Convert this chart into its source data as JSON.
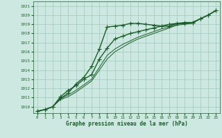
{
  "xlabel": "Graphe pression niveau de la mer (hPa)",
  "xlim": [
    -0.5,
    23.5
  ],
  "ylim": [
    1009.3,
    1021.5
  ],
  "yticks": [
    1010,
    1011,
    1012,
    1013,
    1014,
    1015,
    1016,
    1017,
    1018,
    1019,
    1020,
    1021
  ],
  "xticks": [
    0,
    1,
    2,
    3,
    4,
    5,
    6,
    7,
    8,
    9,
    10,
    11,
    12,
    13,
    14,
    15,
    16,
    17,
    18,
    19,
    20,
    21,
    22,
    23
  ],
  "bg_color": "#cce8e0",
  "grid_color": "#a0c8bc",
  "line_color": "#1a5c2a",
  "series": [
    {
      "y": [
        1009.5,
        1009.7,
        1010.0,
        1010.9,
        1011.5,
        1012.5,
        1013.2,
        1014.4,
        1016.3,
        1018.7,
        1018.8,
        1018.9,
        1019.1,
        1019.1,
        1019.0,
        1018.9,
        1018.8,
        1018.8,
        1019.1,
        1019.1,
        1019.2,
        1019.6,
        1020.0,
        1020.5
      ],
      "marker": "+",
      "lw": 1.0,
      "ms": 5
    },
    {
      "y": [
        1009.5,
        1009.7,
        1010.0,
        1011.1,
        1011.8,
        1012.3,
        1013.0,
        1013.5,
        1015.2,
        1016.4,
        1017.4,
        1017.7,
        1018.0,
        1018.2,
        1018.4,
        1018.6,
        1018.8,
        1019.0,
        1019.1,
        1019.2,
        1019.2,
        1019.6,
        1020.0,
        1020.5
      ],
      "marker": "+",
      "lw": 1.0,
      "ms": 5
    },
    {
      "y": [
        1009.5,
        1009.7,
        1010.0,
        1010.9,
        1011.3,
        1011.8,
        1012.4,
        1013.0,
        1014.3,
        1015.6,
        1016.3,
        1016.8,
        1017.2,
        1017.6,
        1017.9,
        1018.2,
        1018.5,
        1018.7,
        1019.0,
        1019.1,
        1019.2,
        1019.6,
        1020.0,
        1020.5
      ],
      "marker": null,
      "lw": 0.7,
      "ms": 0
    },
    {
      "y": [
        1009.5,
        1009.7,
        1010.0,
        1010.8,
        1011.1,
        1011.6,
        1012.2,
        1012.8,
        1014.0,
        1015.2,
        1016.0,
        1016.5,
        1017.0,
        1017.4,
        1017.7,
        1018.0,
        1018.3,
        1018.6,
        1018.9,
        1019.0,
        1019.1,
        1019.6,
        1020.0,
        1020.5
      ],
      "marker": null,
      "lw": 0.7,
      "ms": 0
    }
  ]
}
